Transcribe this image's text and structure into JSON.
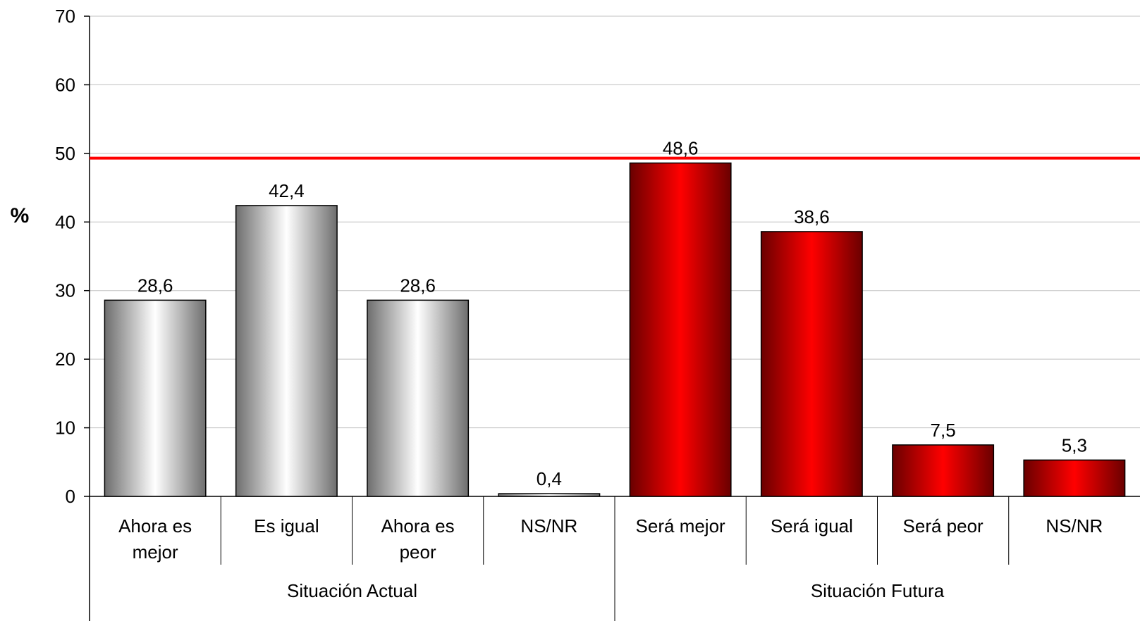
{
  "chart_data": {
    "type": "bar",
    "ylabel": "%",
    "ylim": [
      0,
      70
    ],
    "ytick_step": 10,
    "yticks": [
      "0",
      "10",
      "20",
      "30",
      "40",
      "50",
      "60",
      "70"
    ],
    "grid": true,
    "reference_line": {
      "value": 49.3,
      "color": "#ff0000"
    },
    "groups": [
      {
        "label": "Situación Actual",
        "style": "gray",
        "categories": [
          {
            "label_lines": [
              "Ahora es",
              "mejor"
            ],
            "value": 28.6,
            "value_label": "28,6"
          },
          {
            "label_lines": [
              "Es igual"
            ],
            "value": 42.4,
            "value_label": "42,4"
          },
          {
            "label_lines": [
              "Ahora es",
              "peor"
            ],
            "value": 28.6,
            "value_label": "28,6"
          },
          {
            "label_lines": [
              "NS/NR"
            ],
            "value": 0.4,
            "value_label": "0,4"
          }
        ]
      },
      {
        "label": "Situación Futura",
        "style": "red",
        "categories": [
          {
            "label_lines": [
              "Será mejor"
            ],
            "value": 48.6,
            "value_label": "48,6"
          },
          {
            "label_lines": [
              "Será igual"
            ],
            "value": 38.6,
            "value_label": "38,6"
          },
          {
            "label_lines": [
              "Será peor"
            ],
            "value": 7.5,
            "value_label": "7,5"
          },
          {
            "label_lines": [
              "NS/NR"
            ],
            "value": 5.3,
            "value_label": "5,3"
          }
        ]
      }
    ]
  },
  "colors": {
    "gray_edge": "#6e6e6e",
    "gray_center": "#ffffff",
    "red_edge": "#6a0000",
    "red_center": "#ff0000",
    "grid": "#c0c0c0",
    "axis": "#000000"
  }
}
